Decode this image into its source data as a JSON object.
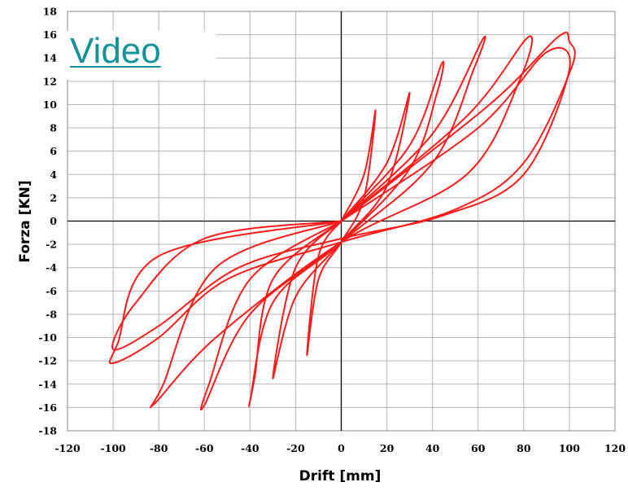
{
  "link": {
    "label": "Video"
  },
  "chart_data": {
    "type": "line",
    "title": "",
    "xlabel": "Drift [mm]",
    "ylabel": "Forza [KN]",
    "xlim": [
      -120,
      120
    ],
    "ylim": [
      -18,
      18
    ],
    "xticks": [
      -120,
      -100,
      -80,
      -60,
      -40,
      -20,
      0,
      20,
      40,
      60,
      80,
      100,
      120
    ],
    "yticks": [
      -18,
      -16,
      -14,
      -12,
      -10,
      -8,
      -6,
      -4,
      -2,
      0,
      2,
      4,
      6,
      8,
      10,
      12,
      14,
      16,
      18
    ],
    "grid": true,
    "line_color": "#ff1a1a",
    "series": [
      {
        "name": "",
        "x": [
          0,
          10,
          15,
          10,
          0,
          -10,
          -15,
          -10,
          0
        ],
        "y": [
          0,
          4,
          9.5,
          2,
          -1.8,
          -5,
          -11.5,
          -3,
          0
        ]
      },
      {
        "name": "",
        "x": [
          0,
          20,
          30,
          20,
          0,
          -20,
          -30,
          -20,
          0
        ],
        "y": [
          0,
          5,
          11,
          3,
          -1.8,
          -6.5,
          -13.5,
          -4,
          0
        ]
      },
      {
        "name": "",
        "x": [
          0,
          30,
          44,
          42,
          30,
          0,
          -30,
          -40,
          -38,
          -30,
          0
        ],
        "y": [
          0,
          6.5,
          13.5,
          11,
          4.5,
          -1.8,
          -7,
          -15.5,
          -13.5,
          -5,
          0
        ]
      },
      {
        "name": "",
        "x": [
          0,
          40,
          62,
          58,
          40,
          0,
          -40,
          -60,
          -58,
          -40,
          0
        ],
        "y": [
          0,
          7.5,
          15.6,
          13,
          5,
          -1.8,
          -8,
          -15.8,
          -14,
          -5,
          0
        ]
      },
      {
        "name": "",
        "x": [
          0,
          55,
          82,
          78,
          55,
          0,
          -55,
          -82,
          -78,
          -55,
          0
        ],
        "y": [
          0,
          9,
          15.8,
          12,
          4,
          -1.8,
          -10,
          -15.7,
          -14,
          -4,
          0
        ]
      },
      {
        "name": "",
        "x": [
          0,
          65,
          95,
          100,
          101,
          80,
          50,
          0,
          -50,
          -80,
          -100,
          -98,
          -80,
          0
        ],
        "y": [
          0,
          10,
          15.8,
          15.4,
          13.2,
          5,
          1,
          -1.8,
          -5,
          -10,
          -12.2,
          -10.5,
          -3,
          0
        ]
      },
      {
        "name": "",
        "x": [
          0,
          60,
          90,
          100,
          80,
          45,
          0,
          -45,
          -80,
          -100,
          -90,
          -60,
          0
        ],
        "y": [
          0,
          8,
          14.5,
          13,
          4,
          0.5,
          -1.5,
          -4,
          -9,
          -11,
          -7,
          -1.5,
          0
        ]
      }
    ]
  }
}
